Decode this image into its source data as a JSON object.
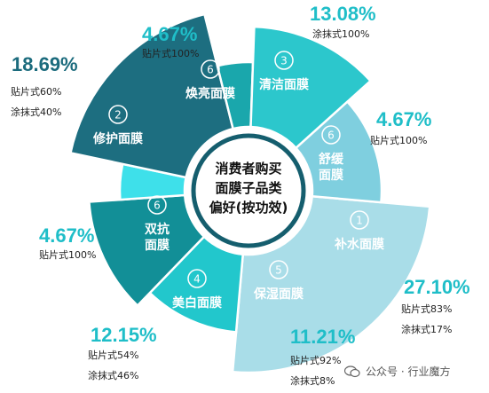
{
  "chart_data": {
    "type": "pie",
    "title": "消费者购买面膜子品类偏好(按功效)",
    "title_lines": [
      "消费者购买",
      "面膜子品类",
      "偏好(按功效)"
    ],
    "segments": [
      {
        "rank": "1",
        "name": "补水面膜",
        "value_label": "27.10%",
        "value": 27.1,
        "details": [
          "贴片式83%",
          "涂抹式17%"
        ],
        "color": "#a9dde8"
      },
      {
        "rank": "5",
        "name": "保湿面膜",
        "value_label": "11.21%",
        "value": 11.21,
        "details": [
          "贴片式92%",
          "涂抹式8%"
        ],
        "color": "#22c7cc"
      },
      {
        "rank": "4",
        "name": "美白面膜",
        "value_label": "12.15%",
        "value": 12.15,
        "details": [
          "贴片式54%",
          "涂抹式46%"
        ],
        "color": "#128f97"
      },
      {
        "rank": "6",
        "name": "双抗面膜",
        "value_label": "4.67%",
        "value": 4.67,
        "details": [
          "贴片式100%"
        ],
        "color": "#3ee0ea"
      },
      {
        "rank": "2",
        "name": "修护面膜",
        "value_label": "18.69%",
        "value": 18.69,
        "details": [
          "贴片式60%",
          "涂抹式40%"
        ],
        "color": "#1d6e80"
      },
      {
        "rank": "6",
        "name": "焕亮面膜",
        "value_label": "4.67%",
        "value": 4.67,
        "details": [
          "贴片式100%"
        ],
        "color": "#1aa7ac"
      },
      {
        "rank": "3",
        "name": "清洁面膜",
        "value_label": "13.08%",
        "value": 13.08,
        "details": [
          "涂抹式100%"
        ],
        "color": "#2cc7cc"
      },
      {
        "rank": "6",
        "name": "舒缓面膜",
        "value_label": "4.67%",
        "value": 4.67,
        "details": [
          "贴片式100%"
        ],
        "color": "#7fcfdf"
      }
    ]
  },
  "watermark": "公众号 · 行业魔方",
  "colors": {
    "pct_text": "#1fbec8",
    "label_text": "#ffffff",
    "ring_gray": "#d9dadb"
  }
}
